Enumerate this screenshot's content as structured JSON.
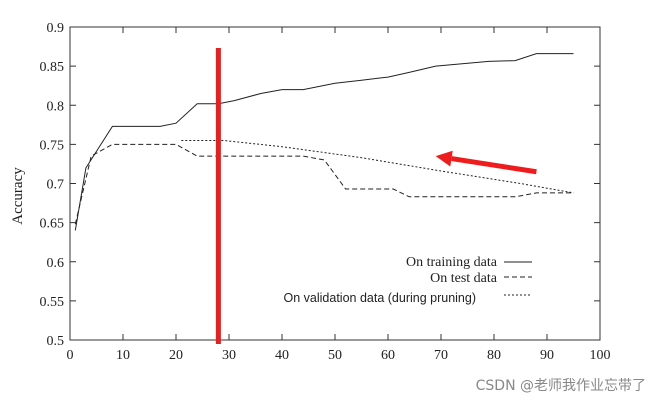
{
  "chart_data": {
    "type": "line",
    "title": "",
    "xlabel": "",
    "ylabel": "Accuracy",
    "xlim": [
      0,
      100
    ],
    "ylim": [
      0.5,
      0.9
    ],
    "x_ticks": [
      "0",
      "10",
      "20",
      "30",
      "40",
      "50",
      "60",
      "70",
      "80",
      "90",
      "100"
    ],
    "y_ticks": [
      "0.9",
      "0.85",
      "0.8",
      "0.75",
      "0.7",
      "0.65",
      "0.6",
      "0.55",
      "0.5"
    ],
    "series": [
      {
        "name": "On training data",
        "style": "solid",
        "points": [
          [
            1,
            0.64
          ],
          [
            3,
            0.72
          ],
          [
            8,
            0.773
          ],
          [
            13,
            0.773
          ],
          [
            17,
            0.773
          ],
          [
            20,
            0.777
          ],
          [
            24,
            0.802
          ],
          [
            28,
            0.802
          ],
          [
            31,
            0.806
          ],
          [
            36,
            0.815
          ],
          [
            40,
            0.82
          ],
          [
            44,
            0.82
          ],
          [
            50,
            0.828
          ],
          [
            55,
            0.832
          ],
          [
            60,
            0.836
          ],
          [
            64,
            0.842
          ],
          [
            69,
            0.85
          ],
          [
            74,
            0.853
          ],
          [
            79,
            0.856
          ],
          [
            84,
            0.857
          ],
          [
            88,
            0.866
          ],
          [
            95,
            0.866
          ]
        ]
      },
      {
        "name": "On test data",
        "style": "dashed",
        "points": [
          [
            1,
            0.648
          ],
          [
            4,
            0.735
          ],
          [
            8,
            0.75
          ],
          [
            14,
            0.75
          ],
          [
            20,
            0.75
          ],
          [
            24,
            0.735
          ],
          [
            30,
            0.735
          ],
          [
            36,
            0.735
          ],
          [
            44,
            0.735
          ],
          [
            48,
            0.73
          ],
          [
            52,
            0.693
          ],
          [
            56,
            0.693
          ],
          [
            61,
            0.693
          ],
          [
            64,
            0.683
          ],
          [
            70,
            0.683
          ],
          [
            76,
            0.683
          ],
          [
            84,
            0.683
          ],
          [
            88,
            0.688
          ],
          [
            95,
            0.688
          ]
        ]
      },
      {
        "name": "On validation data (during pruning)",
        "style": "dotted",
        "points": [
          [
            21,
            0.755
          ],
          [
            29,
            0.755
          ],
          [
            40,
            0.747
          ],
          [
            55,
            0.733
          ],
          [
            70,
            0.716
          ],
          [
            85,
            0.7
          ],
          [
            95,
            0.688
          ]
        ]
      }
    ],
    "annotations": {
      "marker_line": {
        "x": 28,
        "color": "#ee1c1c"
      },
      "arrow": {
        "from": [
          88,
          0.715
        ],
        "to": [
          69,
          0.735
        ],
        "color": "#ee1c1c"
      }
    }
  },
  "watermark": "CSDN @老师我作业忘带了"
}
